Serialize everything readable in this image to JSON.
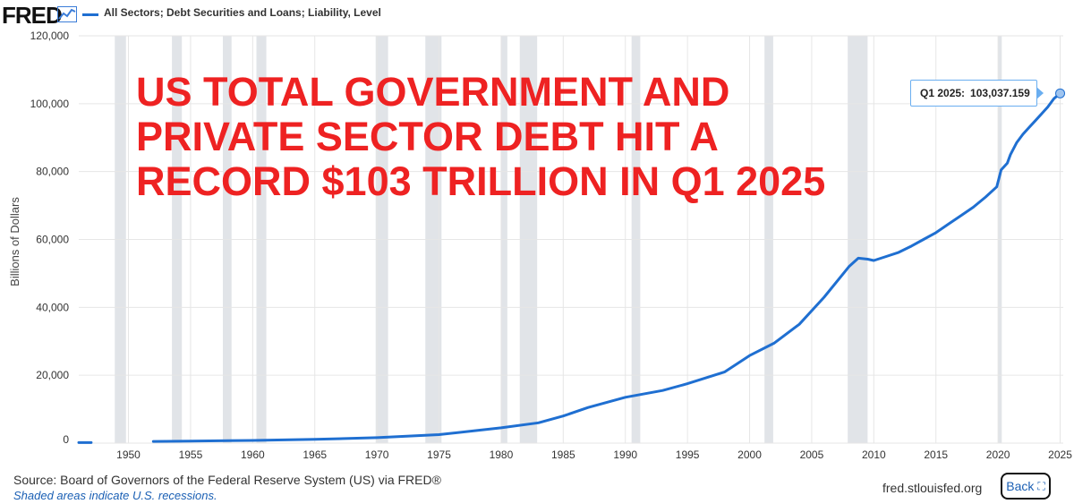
{
  "header": {
    "logo_text": "FRED",
    "logo_icon": "line-chart-icon",
    "legend_label": "All Sectors; Debt Securities and Loans; Liability, Level",
    "series_color": "#1f6fd1"
  },
  "headline": {
    "line1": "US TOTAL GOVERNMENT AND",
    "line2": "PRIVATE SECTOR DEBT HIT A",
    "line3": "RECORD $103 TRILLION IN Q1 2025",
    "color": "#ee2222"
  },
  "tooltip": {
    "label": "Q1 2025:",
    "value": "103,037.159"
  },
  "footer": {
    "source": "Source: Board of Governors of the Federal Reserve System (US) via FRED®",
    "note": "Shaded areas indicate U.S. recessions.",
    "site": "fred.stlouisfed.org",
    "back_label": "Back",
    "back_icon": "fullscreen-icon"
  },
  "chart_data": {
    "type": "line",
    "title": "",
    "xlabel": "",
    "ylabel": "Billions of Dollars",
    "xlim": [
      1946,
      2025.25
    ],
    "ylim": [
      0,
      120000
    ],
    "yticks": [
      0,
      20000,
      40000,
      60000,
      80000,
      100000,
      120000
    ],
    "ytick_labels": [
      "0",
      "20,000",
      "40,000",
      "60,000",
      "80,000",
      "100,000",
      "120,000"
    ],
    "xticks": [
      1950,
      1955,
      1960,
      1965,
      1970,
      1975,
      1980,
      1985,
      1990,
      1995,
      2000,
      2005,
      2010,
      2015,
      2020,
      2025
    ],
    "grid": true,
    "recessions": [
      [
        1948.9,
        1949.8
      ],
      [
        1953.5,
        1954.3
      ],
      [
        1957.6,
        1958.3
      ],
      [
        1960.3,
        1961.1
      ],
      [
        1969.9,
        1970.9
      ],
      [
        1973.9,
        1975.2
      ],
      [
        1980.0,
        1980.5
      ],
      [
        1981.5,
        1982.9
      ],
      [
        1990.5,
        1991.2
      ],
      [
        2001.2,
        2001.9
      ],
      [
        2007.9,
        2009.5
      ],
      [
        2020.0,
        2020.3
      ]
    ],
    "recession_color": "#e1e4e8",
    "series": [
      {
        "color": "#1f6fd1",
        "segments": [
          {
            "x": [
              1946,
              1947
            ],
            "y": [
              150,
              160
            ]
          },
          {
            "x": [
              1952,
              1955,
              1960,
              1965,
              1970,
              1975,
              1980,
              1983,
              1985,
              1987,
              1990,
              1993,
              1995,
              1998,
              2000,
              2002,
              2004,
              2006,
              2008,
              2008.75,
              2009.5,
              2010,
              2011,
              2012,
              2013,
              2014,
              2015,
              2016,
              2017,
              2018,
              2019,
              2019.9,
              2020.25,
              2020.75,
              2021,
              2021.5,
              2022,
              2022.5,
              2023,
              2023.5,
              2024,
              2024.5,
              2025
            ],
            "y": [
              500,
              600,
              800,
              1100,
              1600,
              2500,
              4500,
              6000,
              8000,
              10500,
              13500,
              15500,
              17500,
              21000,
              25800,
              29500,
              35000,
              43000,
              52000,
              54500,
              54200,
              53800,
              55000,
              56200,
              58000,
              60000,
              62000,
              64500,
              67000,
              69500,
              72500,
              75500,
              80500,
              82500,
              85000,
              88500,
              91000,
              93000,
              95000,
              97000,
              99000,
              101500,
              103037.159
            ]
          }
        ]
      }
    ],
    "highlight_point": {
      "x": 2025,
      "y": 103037.159
    }
  }
}
